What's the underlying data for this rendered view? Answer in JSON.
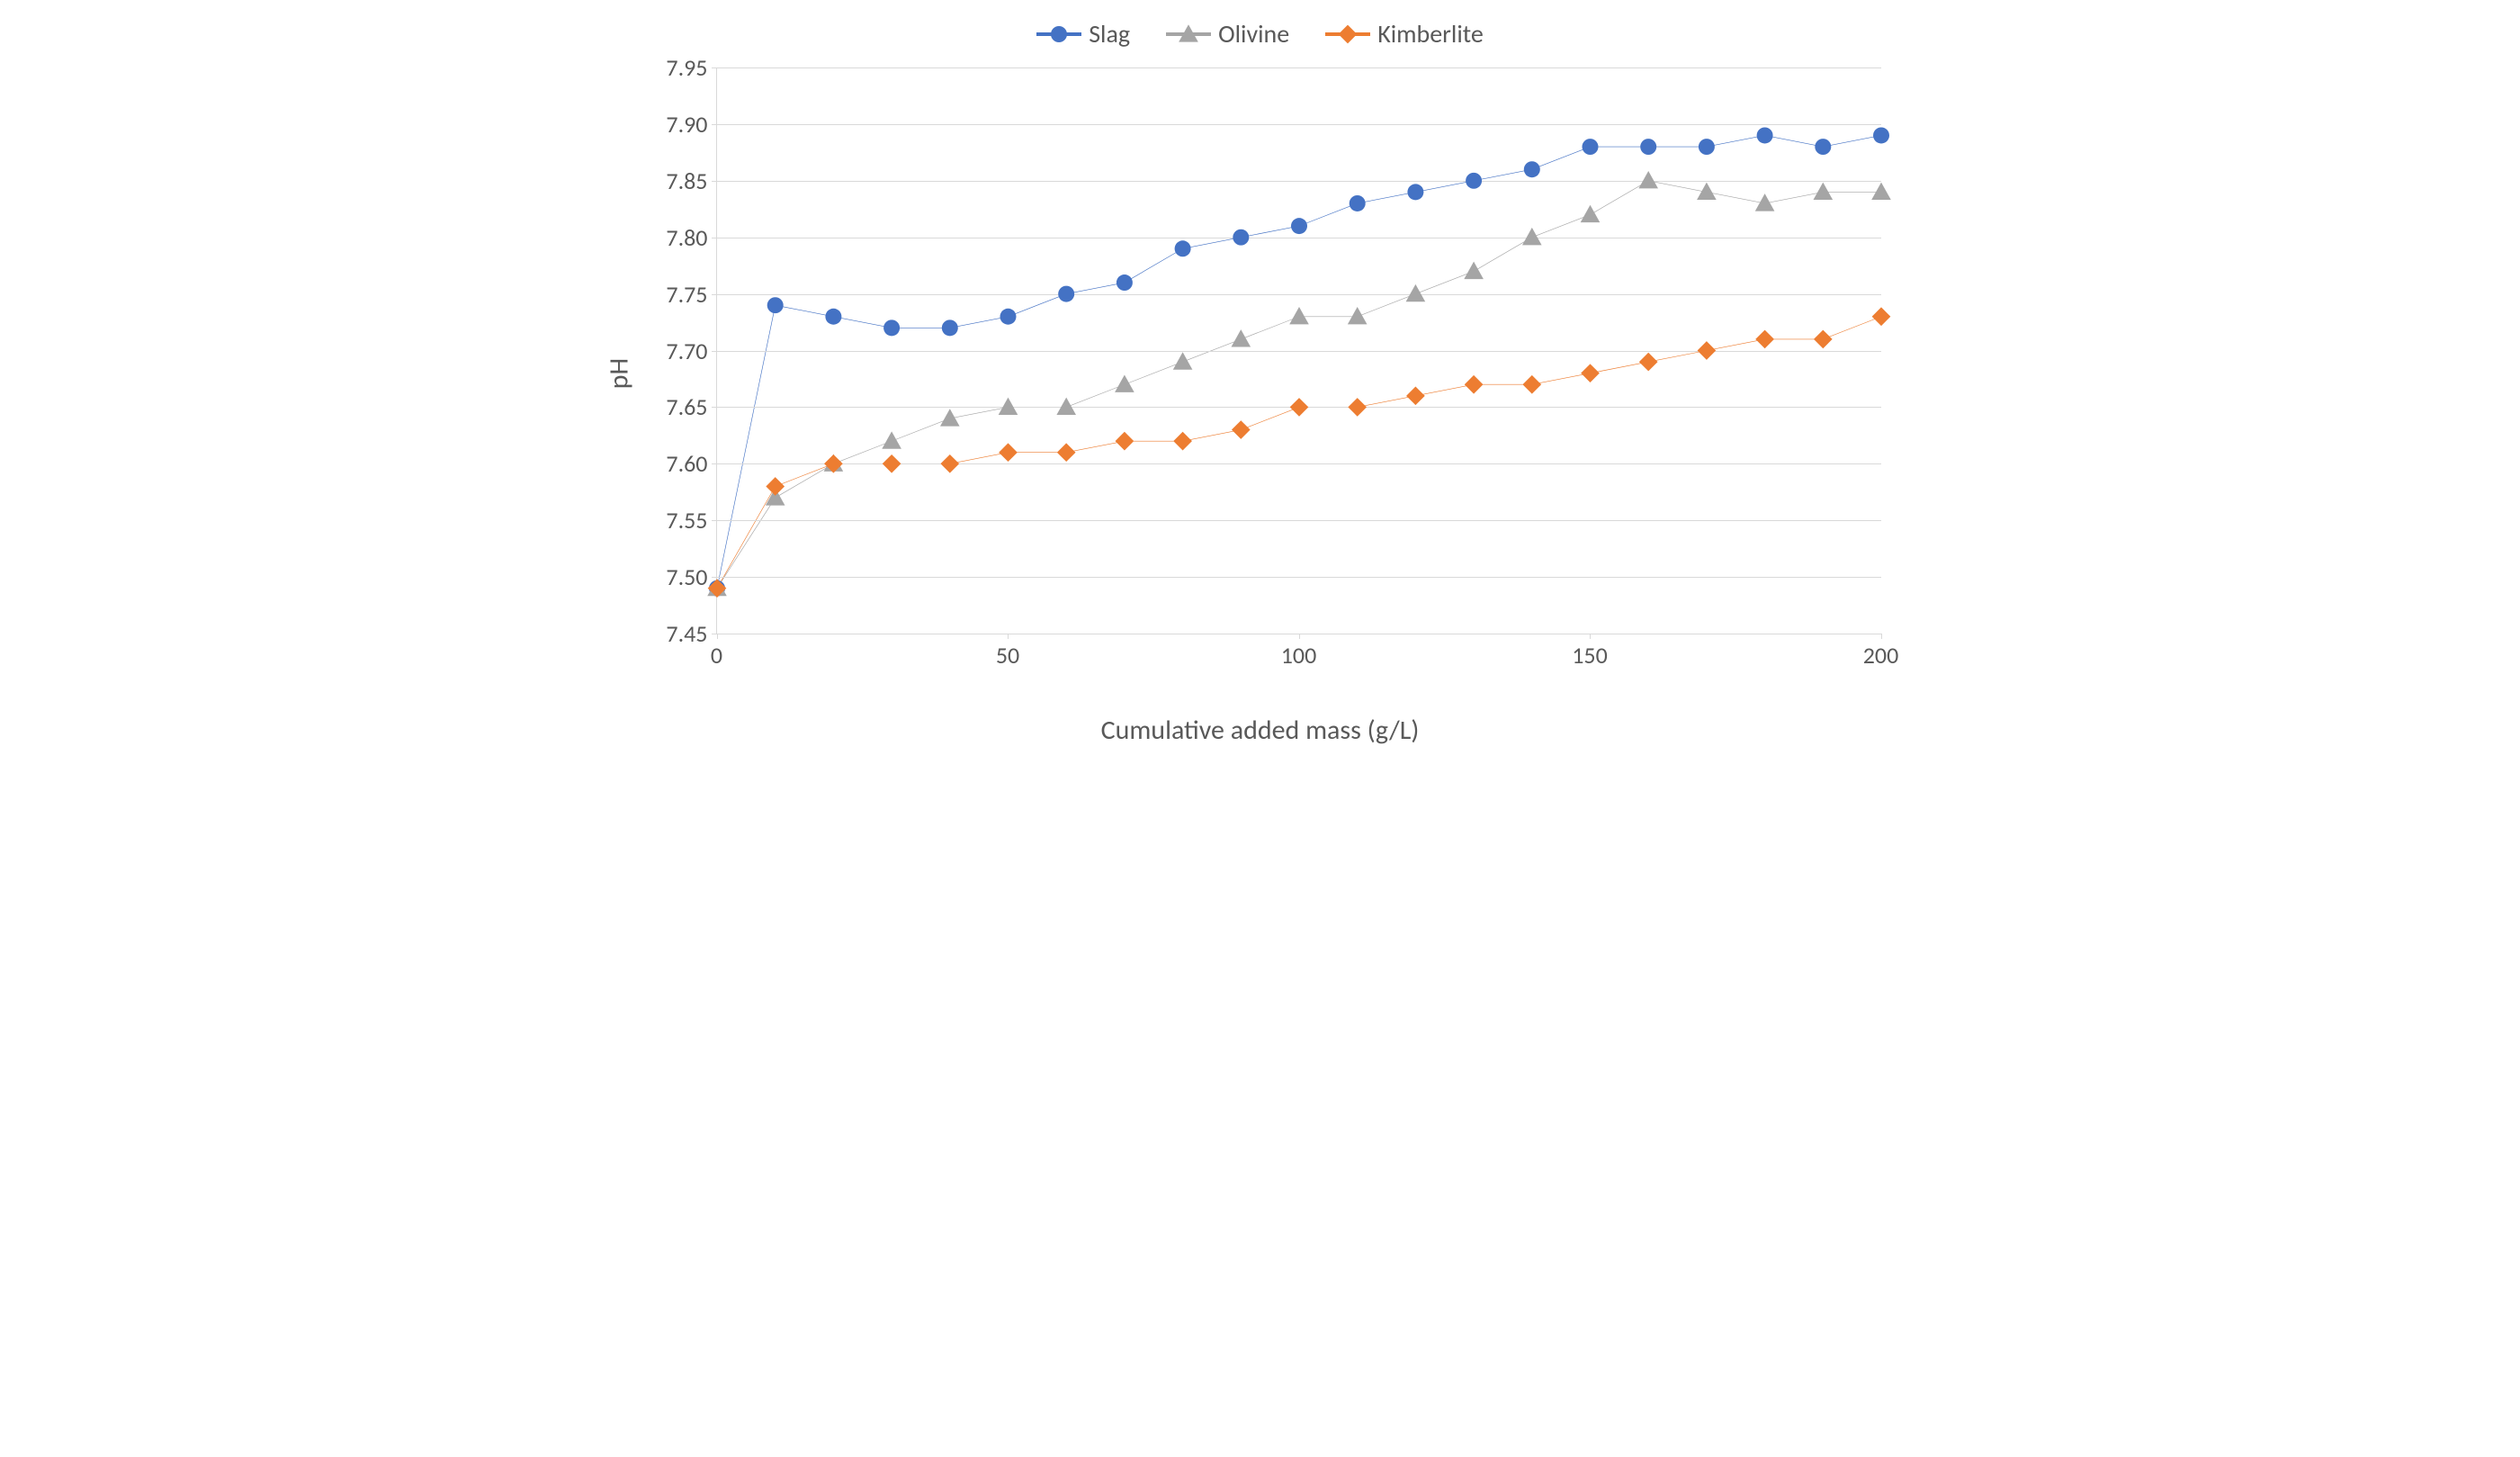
{
  "chart": {
    "type": "line",
    "xlabel": "Cumulative added mass (g/L)",
    "ylabel": "pH",
    "xlim": [
      0,
      200
    ],
    "ylim": [
      7.45,
      7.95
    ],
    "xtick_step": 50,
    "ytick_step": 0.05,
    "xticks": [
      0,
      50,
      100,
      150,
      200
    ],
    "yticks": [
      7.45,
      7.5,
      7.55,
      7.6,
      7.65,
      7.7,
      7.75,
      7.8,
      7.85,
      7.9,
      7.95
    ],
    "ytick_labels": [
      "7.45",
      "7.50",
      "7.55",
      "7.60",
      "7.65",
      "7.70",
      "7.75",
      "7.80",
      "7.85",
      "7.90",
      "7.95"
    ],
    "background_color": "#ffffff",
    "grid_color": "#d9d9d9",
    "axis_color": "#d9d9d9",
    "text_color": "#595959",
    "label_fontsize": 30,
    "tick_fontsize": 26,
    "legend_fontsize": 28,
    "legend_position": "top-center",
    "line_width": 4,
    "marker_size": 9,
    "x_values": [
      0,
      10,
      20,
      30,
      40,
      50,
      60,
      70,
      80,
      90,
      100,
      110,
      120,
      130,
      140,
      150,
      160,
      170,
      180,
      190,
      200
    ],
    "series": [
      {
        "name": "Slag",
        "color": "#4472c4",
        "marker": "circle",
        "y": [
          7.49,
          7.74,
          7.73,
          7.72,
          7.72,
          7.73,
          7.75,
          7.76,
          7.79,
          7.8,
          7.81,
          7.83,
          7.84,
          7.85,
          7.86,
          7.88,
          7.88,
          7.88,
          7.89,
          7.88,
          7.89
        ]
      },
      {
        "name": "Olivine",
        "color": "#a5a5a5",
        "marker": "triangle",
        "y": [
          7.49,
          7.57,
          7.6,
          7.62,
          7.64,
          7.65,
          7.65,
          7.67,
          7.69,
          7.71,
          7.73,
          7.73,
          7.75,
          7.77,
          7.8,
          7.82,
          7.85,
          7.84,
          7.83,
          7.84,
          7.84
        ]
      },
      {
        "name": "Kimberlite",
        "color": "#ed7d31",
        "marker": "diamond",
        "y": [
          7.49,
          7.58,
          7.6,
          7.6,
          7.6,
          7.61,
          7.61,
          7.62,
          7.62,
          7.63,
          7.65,
          7.65,
          7.66,
          7.67,
          7.67,
          7.68,
          7.69,
          7.7,
          7.71,
          7.71,
          7.73
        ]
      }
    ]
  }
}
